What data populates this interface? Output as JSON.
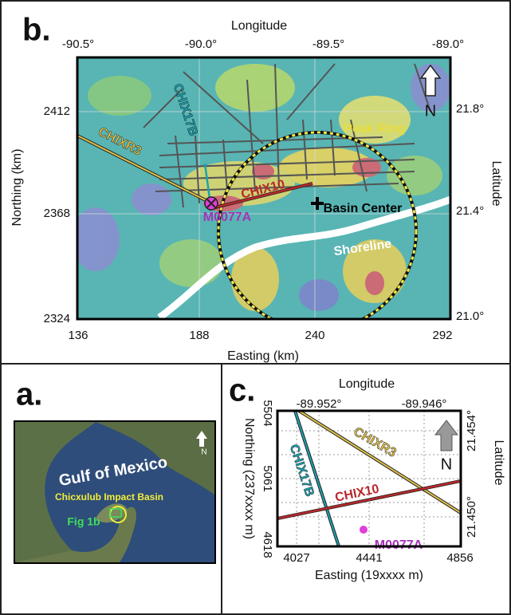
{
  "panel_b": {
    "label": "b.",
    "top_axis_title": "Longitude",
    "top_ticks": [
      "-90.5°",
      "-90.0°",
      "-89.5°",
      "-89.0°"
    ],
    "left_axis_title": "Northing (km)",
    "left_ticks": [
      "2412",
      "2368",
      "2324"
    ],
    "right_axis_title": "Latitude",
    "right_ticks": [
      "21.8°",
      "21.4°",
      "21.0°"
    ],
    "bottom_axis_title": "Easting (km)",
    "bottom_ticks": [
      "136",
      "188",
      "240",
      "292"
    ],
    "map_labels": [
      "CHIX17B",
      "CHIXR3",
      "Peak Ring",
      "CHIX10",
      "M0077A",
      "Basin Center",
      "Shoreline",
      "N"
    ]
  },
  "panel_a": {
    "label": "a.",
    "map_labels": [
      "Gulf of Mexico",
      "Chicxulub Impact Basin",
      "Fig 1b",
      "N"
    ]
  },
  "panel_c": {
    "label": "c.",
    "top_axis_title": "Longitude",
    "top_ticks": [
      "-89.952°",
      "-89.946°"
    ],
    "left_axis_title": "Northing (237xxxx m)",
    "left_ticks": [
      "5504",
      "5061",
      "4618"
    ],
    "right_axis_title": "Latitude",
    "right_ticks": [
      "21.454°",
      "21.450°"
    ],
    "bottom_axis_title": "Easting (19xxxx m)",
    "bottom_ticks": [
      "4027",
      "4441",
      "4856"
    ],
    "map_labels": [
      "CHIXR3",
      "CHIX17B",
      "CHIX10",
      "M0077A",
      "N"
    ]
  }
}
